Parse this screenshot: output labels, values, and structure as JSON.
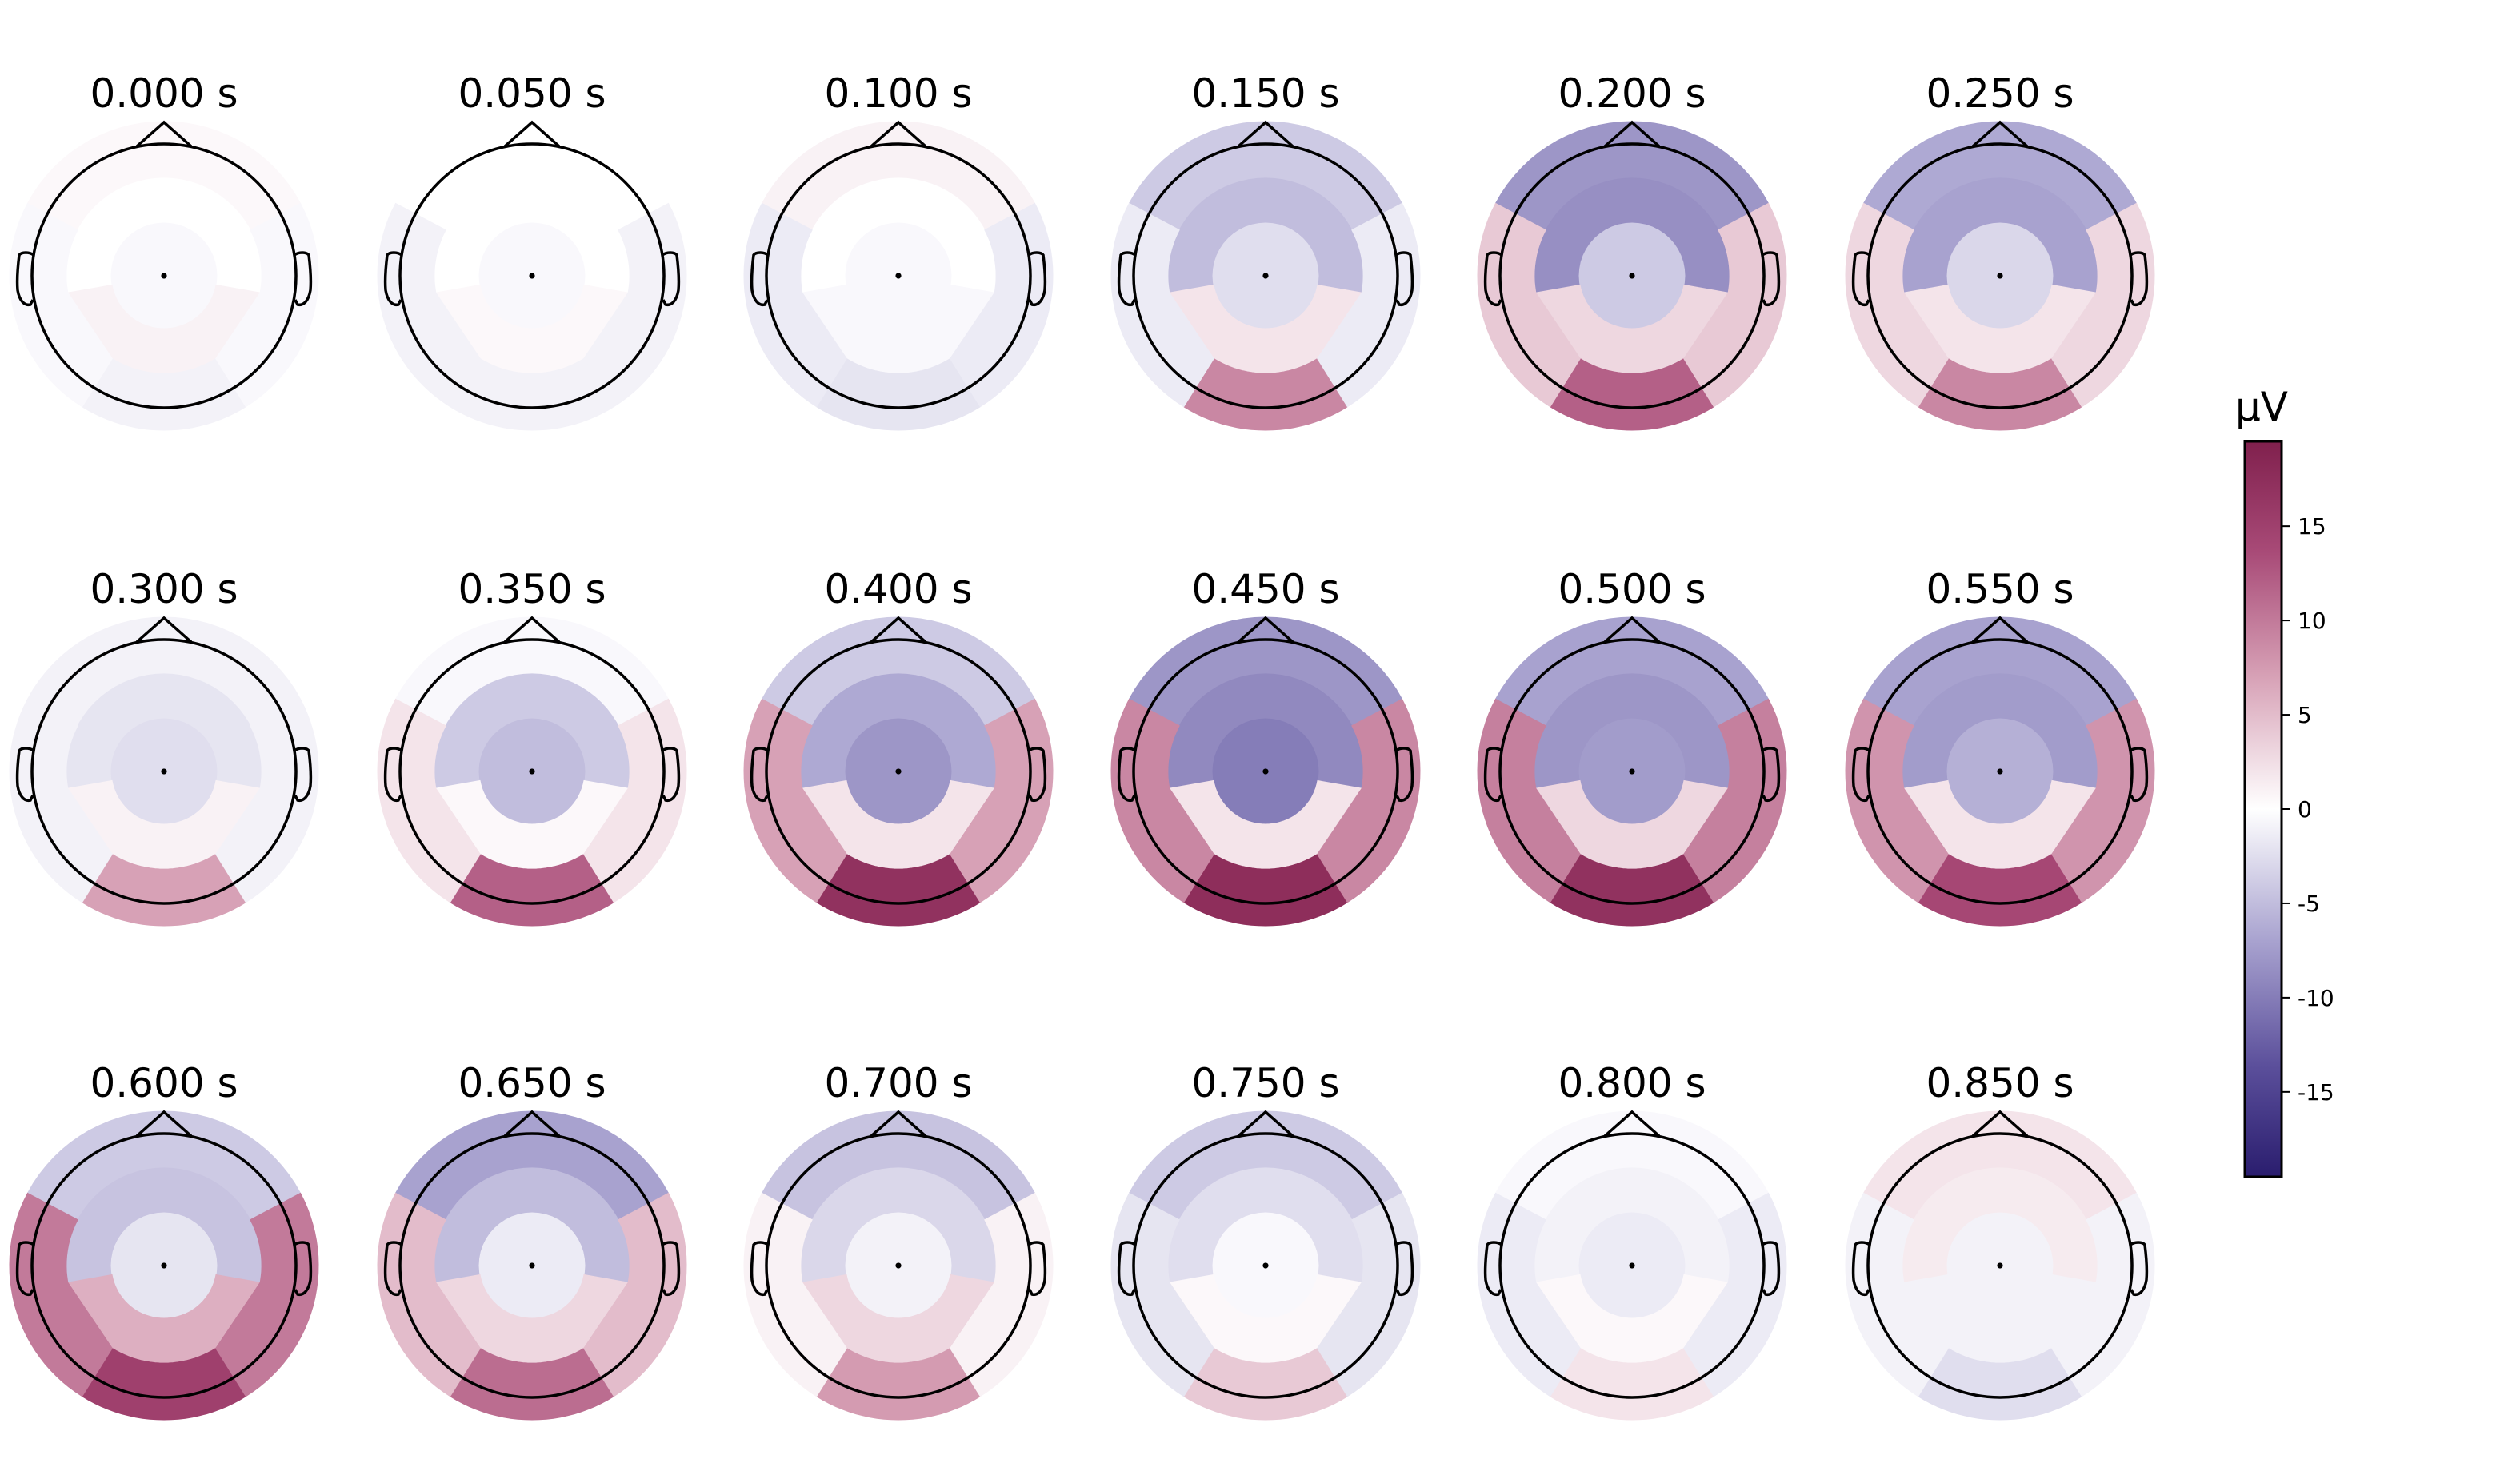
{
  "chart_data": {
    "type": "heatmap",
    "subtype": "eeg-topomap-grid",
    "title": "",
    "grid": false,
    "legend_position": "right",
    "colormap": "diverging purple-white-maroon",
    "colors": {
      "negative_end": "#2a1d6e",
      "neutral": "#ffffff",
      "positive_end": "#80204d",
      "outline": "#000000"
    },
    "colorbar": {
      "label": "µV",
      "vmin": -19.5,
      "vmax": 19.5,
      "ticks": [
        15,
        10,
        5,
        0,
        -5,
        -10,
        -15
      ],
      "tick_labels": [
        "15",
        "10",
        "5",
        "0",
        "-5",
        "-10",
        "-15"
      ]
    },
    "regions": [
      "frontal",
      "frontal-central",
      "central",
      "parietal",
      "occipital",
      "temporal"
    ],
    "maps": [
      {
        "time": "0.000 s",
        "values": {
          "frontal": 0.5,
          "frontal-central": 0.0,
          "central": -0.5,
          "parietal": 1.0,
          "occipital": -1.0,
          "temporal": -0.5
        }
      },
      {
        "time": "0.050 s",
        "values": {
          "frontal": 0.0,
          "frontal-central": 0.0,
          "central": -0.5,
          "parietal": 0.5,
          "occipital": -1.0,
          "temporal": -1.0
        }
      },
      {
        "time": "0.100 s",
        "values": {
          "frontal": 1.0,
          "frontal-central": 0.0,
          "central": -0.5,
          "parietal": -0.5,
          "occipital": -2.0,
          "temporal": -1.5
        }
      },
      {
        "time": "0.150 s",
        "values": {
          "frontal": -4.0,
          "frontal-central": -5.0,
          "central": -2.5,
          "parietal": 2.0,
          "occipital": 9.0,
          "temporal": -1.5
        }
      },
      {
        "time": "0.200 s",
        "values": {
          "frontal": -8.0,
          "frontal-central": -8.5,
          "central": -4.0,
          "parietal": 3.0,
          "occipital": 12.0,
          "temporal": 4.0
        }
      },
      {
        "time": "0.250 s",
        "values": {
          "frontal": -6.5,
          "frontal-central": -7.0,
          "central": -3.0,
          "parietal": 2.0,
          "occipital": 9.0,
          "temporal": 3.0
        }
      },
      {
        "time": "0.300 s",
        "values": {
          "frontal": -1.0,
          "frontal-central": -2.0,
          "central": -2.5,
          "parietal": 1.0,
          "occipital": 7.0,
          "temporal": -1.0
        }
      },
      {
        "time": "0.350 s",
        "values": {
          "frontal": -0.5,
          "frontal-central": -4.0,
          "central": -5.0,
          "parietal": 0.5,
          "occipital": 12.0,
          "temporal": 2.0
        }
      },
      {
        "time": "0.400 s",
        "values": {
          "frontal": -4.0,
          "frontal-central": -6.5,
          "central": -8.0,
          "parietal": 2.0,
          "occipital": 17.0,
          "temporal": 7.0
        }
      },
      {
        "time": "0.450 s",
        "values": {
          "frontal": -8.0,
          "frontal-central": -9.0,
          "central": -10.0,
          "parietal": 2.0,
          "occipital": 17.5,
          "temporal": 9.0
        }
      },
      {
        "time": "0.500 s",
        "values": {
          "frontal": -7.0,
          "frontal-central": -8.0,
          "central": -7.5,
          "parietal": 3.0,
          "occipital": 17.0,
          "temporal": 9.5
        }
      },
      {
        "time": "0.550 s",
        "values": {
          "frontal": -7.0,
          "frontal-central": -7.5,
          "central": -6.0,
          "parietal": 2.0,
          "occipital": 14.0,
          "temporal": 8.0
        }
      },
      {
        "time": "0.600 s",
        "values": {
          "frontal": -4.0,
          "frontal-central": -4.5,
          "central": -2.0,
          "parietal": 6.0,
          "occipital": 15.0,
          "temporal": 10.0
        }
      },
      {
        "time": "0.650 s",
        "values": {
          "frontal": -7.0,
          "frontal-central": -5.0,
          "central": -1.5,
          "parietal": 3.0,
          "occipital": 11.0,
          "temporal": 5.0
        }
      },
      {
        "time": "0.700 s",
        "values": {
          "frontal": -4.5,
          "frontal-central": -3.0,
          "central": -1.0,
          "parietal": 3.0,
          "occipital": 7.5,
          "temporal": 1.0
        }
      },
      {
        "time": "0.750 s",
        "values": {
          "frontal": -4.0,
          "frontal-central": -2.5,
          "central": -0.5,
          "parietal": 0.5,
          "occipital": 4.0,
          "temporal": -2.0
        }
      },
      {
        "time": "0.800 s",
        "values": {
          "frontal": -0.5,
          "frontal-central": -1.0,
          "central": -1.5,
          "parietal": 0.5,
          "occipital": 2.0,
          "temporal": -1.5
        }
      },
      {
        "time": "0.850 s",
        "values": {
          "frontal": 2.0,
          "frontal-central": 1.5,
          "central": -1.0,
          "parietal": -1.0,
          "occipital": -2.5,
          "temporal": -1.0
        }
      }
    ]
  }
}
